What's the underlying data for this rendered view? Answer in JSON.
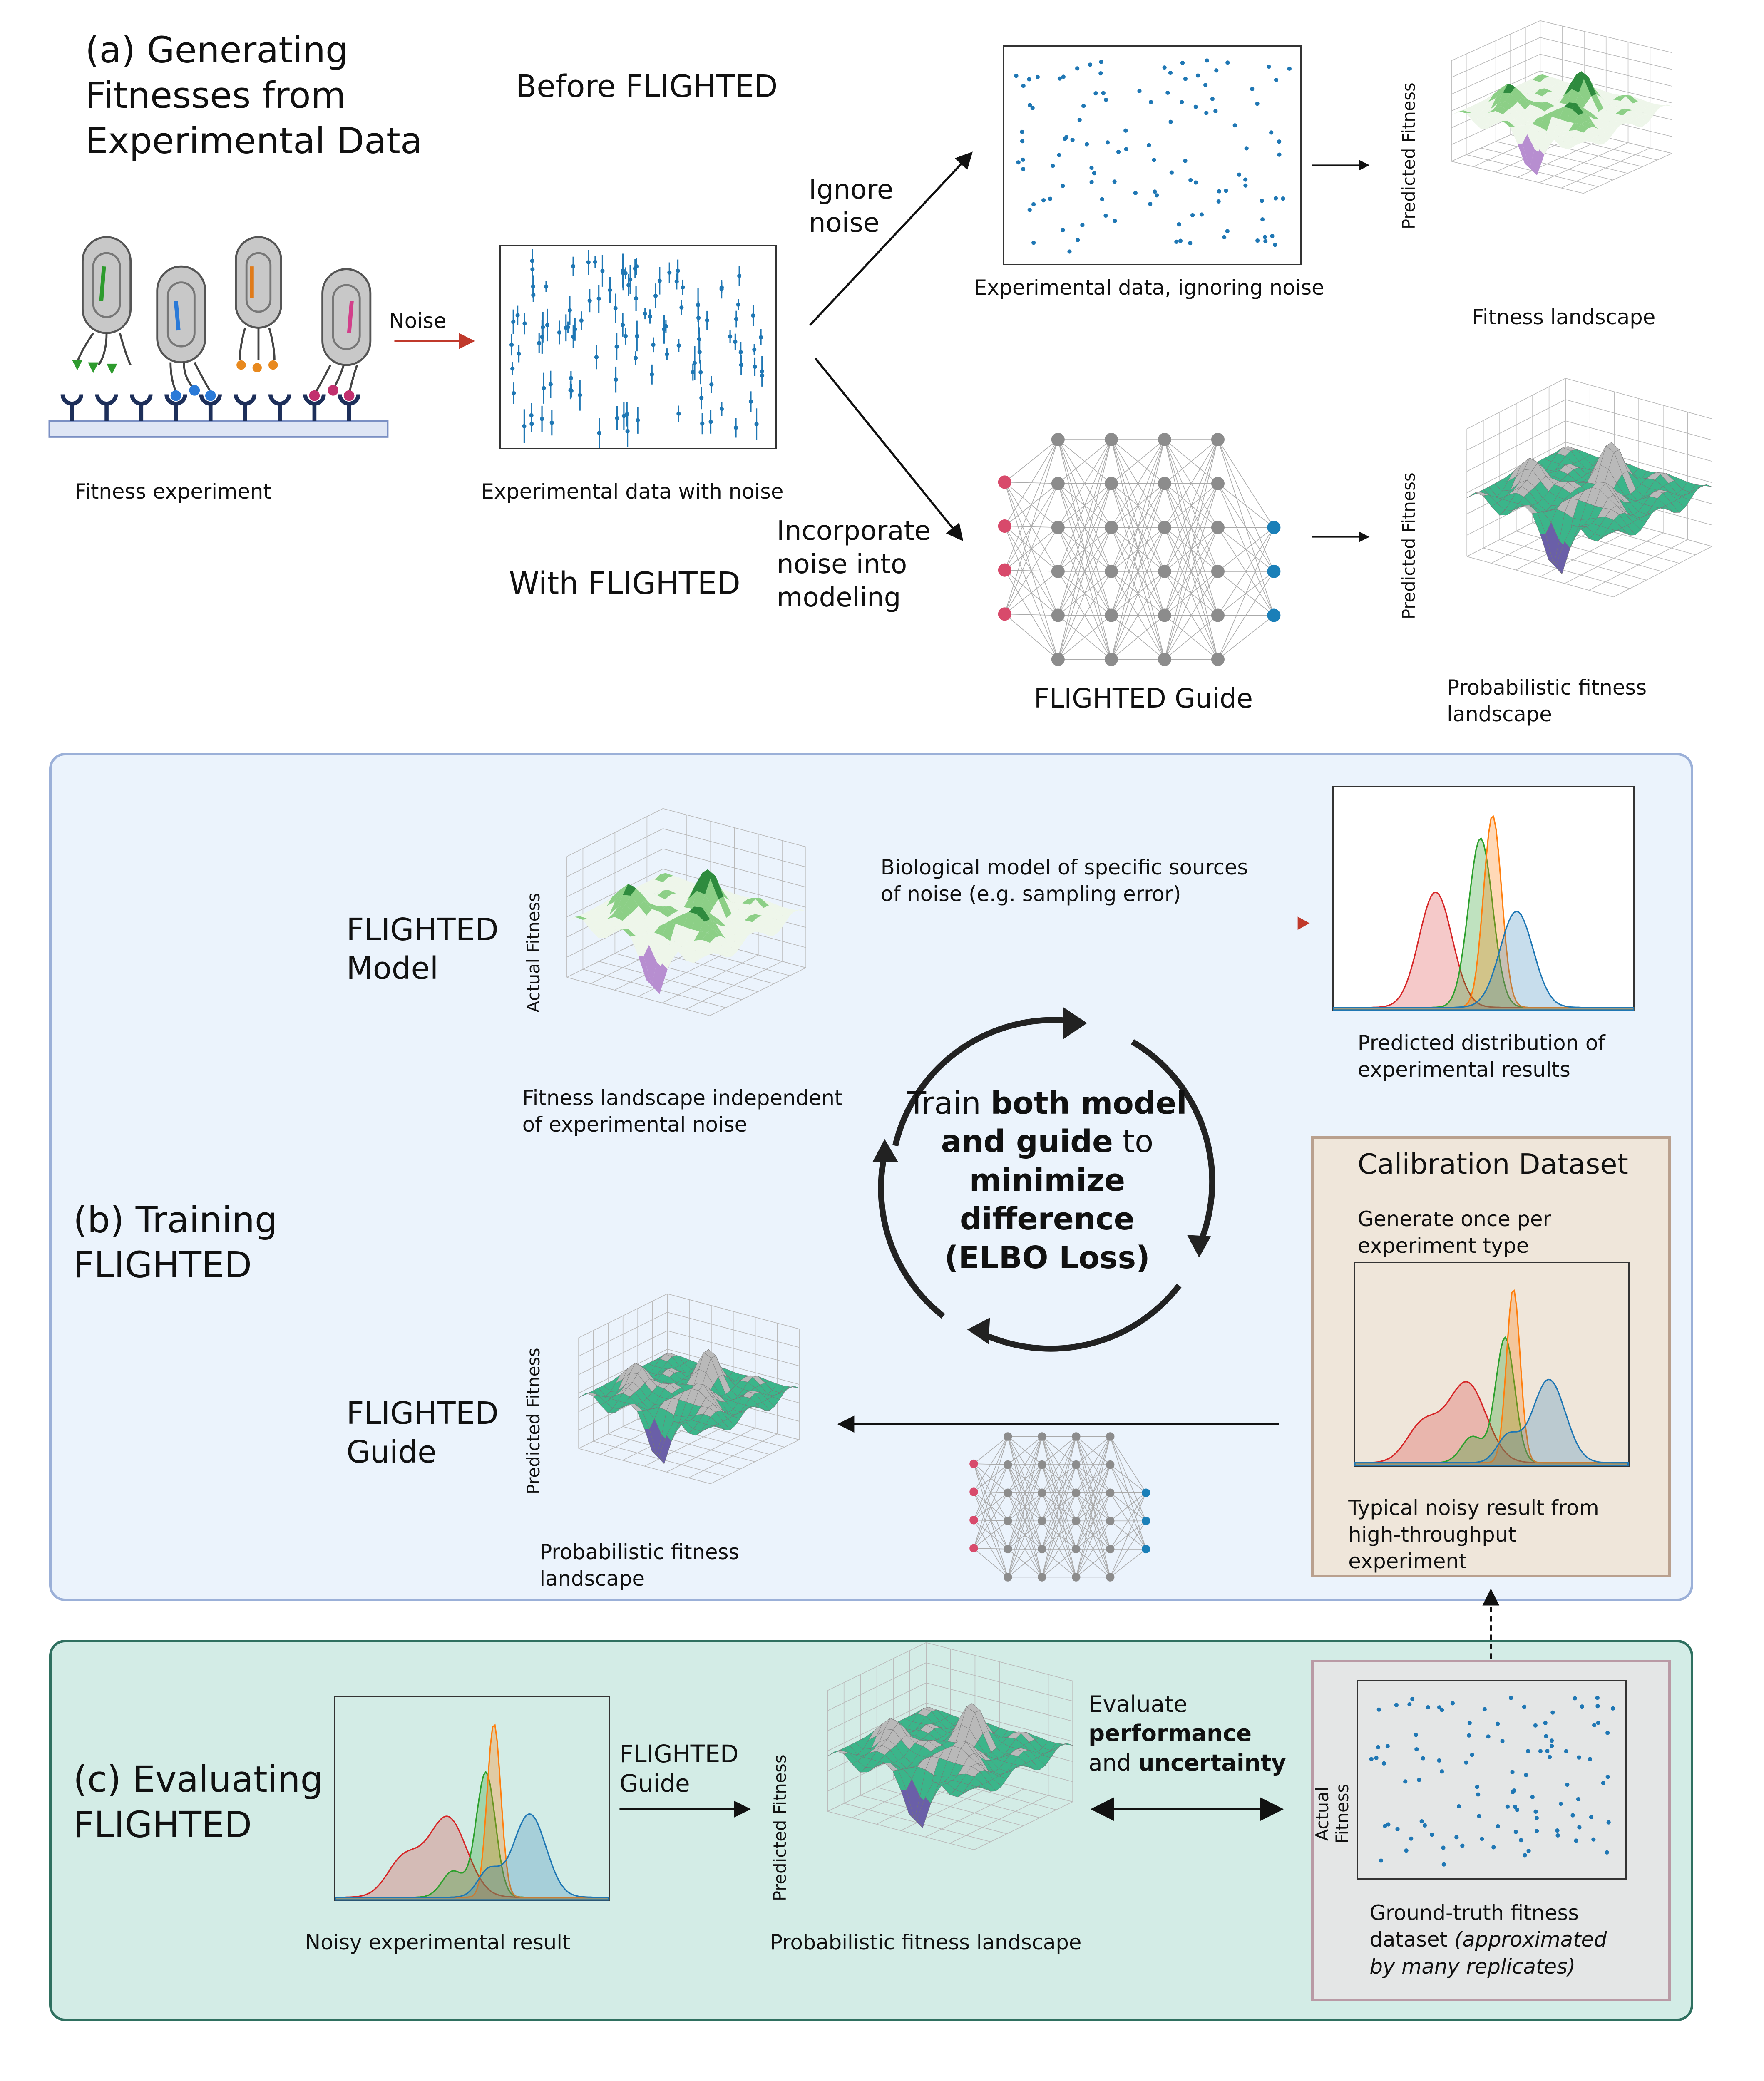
{
  "panel_a": {
    "title": [
      "(a) Generating",
      "Fitnesses from",
      "Experimental Data"
    ],
    "before_label": "Before FLIGHTED",
    "with_label": "With FLIGHTED",
    "noise_label": "Noise",
    "fitness_experiment": "Fitness experiment",
    "data_with_noise": "Experimental data with noise",
    "ignore_noise": [
      "Ignore",
      "noise"
    ],
    "incorporate_noise": [
      "Incorporate",
      "noise into",
      "modeling"
    ],
    "data_ignoring_noise": "Experimental data, ignoring noise",
    "predicted_fitness_axis": "Predicted Fitness",
    "fitness_landscape": "Fitness landscape",
    "guide_label": "FLIGHTED Guide",
    "prob_landscape": [
      "Probabilistic fitness",
      "landscape"
    ]
  },
  "panel_b": {
    "title": [
      "(b) Training",
      "FLIGHTED"
    ],
    "model_label": [
      "FLIGHTED",
      "Model"
    ],
    "actual_fitness_axis": "Actual Fitness",
    "landscape_indep": [
      "Fitness landscape independent",
      "of experimental noise"
    ],
    "bio_model": [
      "Biological model of specific sources",
      "of noise (e.g. sampling error)"
    ],
    "pred_distribution": [
      "Predicted distribution of",
      "experimental results"
    ],
    "cycle_text": {
      "l1a": "Train ",
      "l1b": "both model",
      "l2a": "and guide",
      "l2b": " to",
      "l3": "minimize",
      "l4": "difference",
      "l5": "(ELBO Loss)"
    },
    "calibration_title": "Calibration Dataset",
    "calibration_sub": [
      "Generate once per",
      "experiment type"
    ],
    "typical_noisy": [
      "Typical noisy result from",
      "high-throughput",
      "experiment"
    ],
    "guide_label": [
      "FLIGHTED",
      "Guide"
    ],
    "predicted_fitness_axis": "Predicted Fitness",
    "prob_landscape": [
      "Probabilistic fitness",
      "landscape"
    ]
  },
  "panel_c": {
    "title": [
      "(c) Evaluating",
      "FLIGHTED"
    ],
    "noisy_result": "Noisy experimental result",
    "guide_label": [
      "FLIGHTED",
      "Guide"
    ],
    "predicted_fitness_axis": "Predicted Fitness",
    "prob_landscape": "Probabilistic fitness landscape",
    "evaluate": {
      "l1": "Evaluate",
      "l2": "performance",
      "l3a": "and ",
      "l3b": "uncertainty"
    },
    "actual_fitness_axis": [
      "Actual",
      "Fitness"
    ],
    "ground_truth": {
      "l1": "Ground-truth fitness",
      "l2a": "dataset ",
      "l2b": "(approximated",
      "l3": "by many replicates)"
    }
  },
  "colors": {
    "panel_b_bg": "#ebf3fc",
    "panel_b_border": "#9bb0d8",
    "panel_c_bg": "#d3ece6",
    "panel_c_border": "#2f7060",
    "calibration_bg": "#efe6da",
    "red_arrow": "#c0392b",
    "scatter_blue": "#1f77b4"
  }
}
